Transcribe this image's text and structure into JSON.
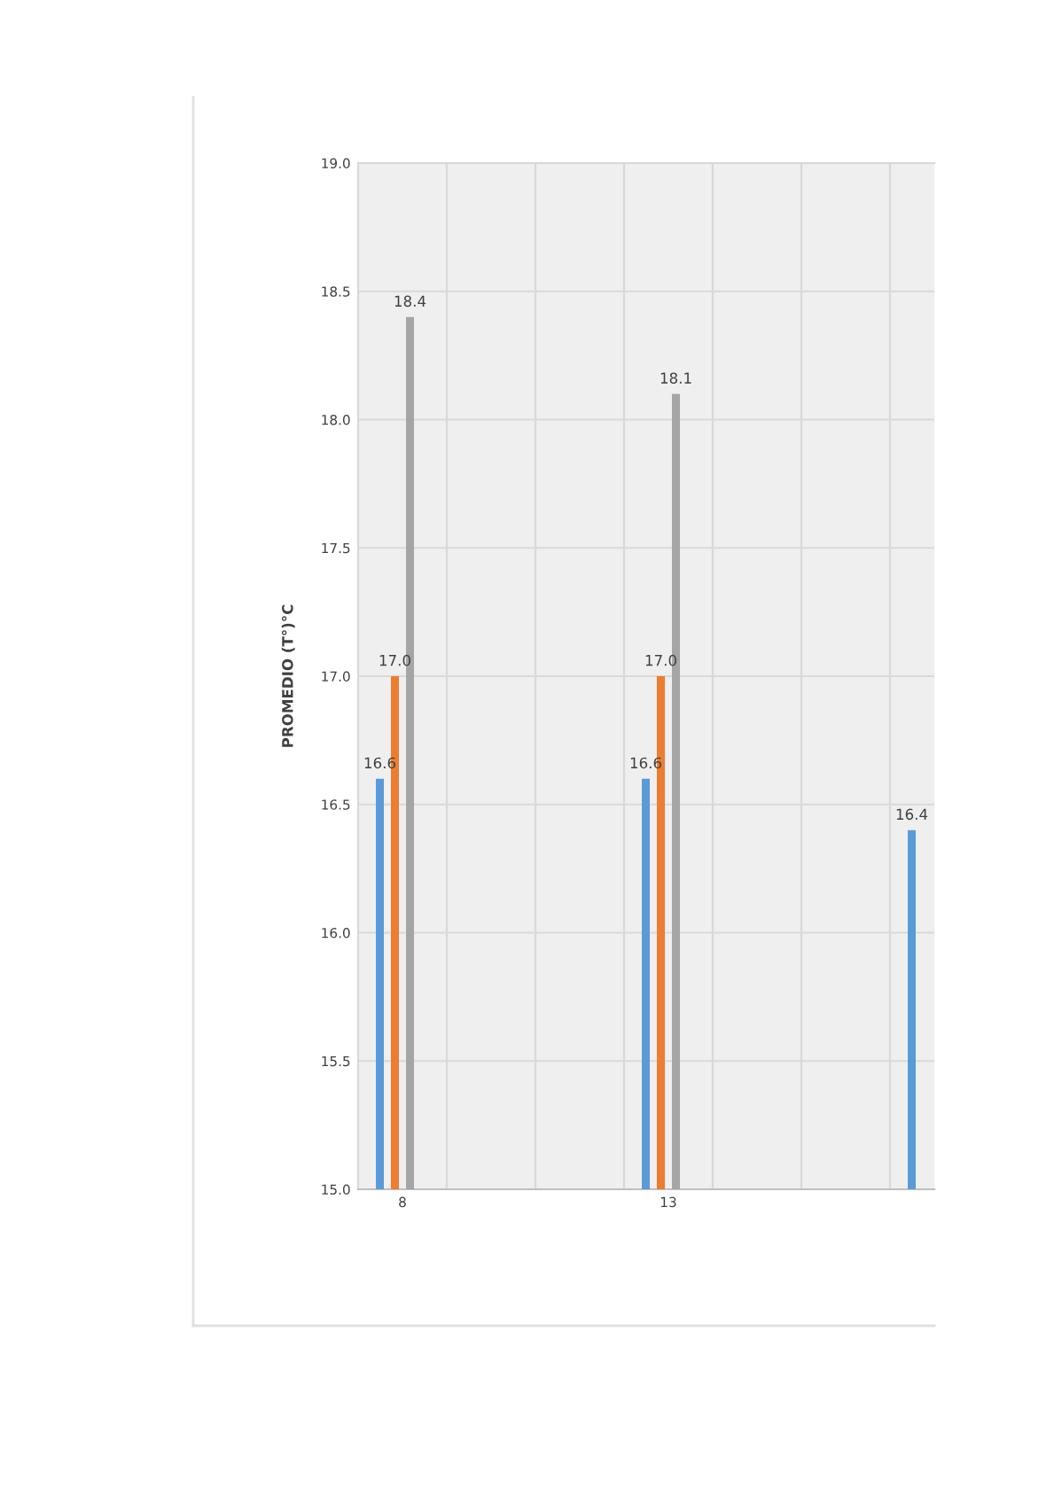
{
  "chart_data": {
    "type": "bar",
    "ylabel": "PROMEDIO (T°)°C",
    "categories": [
      "8",
      null,
      null,
      "13",
      null,
      null,
      null
    ],
    "series": [
      {
        "color": "#5b9bd5",
        "values": [
          16.6,
          null,
          null,
          16.6,
          null,
          null,
          16.4
        ],
        "value_labels": [
          "16.6",
          null,
          null,
          "16.6",
          null,
          null,
          "16.4"
        ]
      },
      {
        "color": "#ed7d31",
        "values": [
          17.0,
          null,
          null,
          17.0,
          null,
          null,
          null
        ],
        "value_labels": [
          "17.0",
          null,
          null,
          "17.0",
          null,
          null,
          null
        ]
      },
      {
        "color": "#a5a5a5",
        "values": [
          18.4,
          null,
          null,
          18.1,
          null,
          null,
          null
        ],
        "value_labels": [
          "18.4",
          null,
          null,
          "18.1",
          null,
          null,
          null
        ]
      }
    ],
    "ylim": [
      15.0,
      19.0
    ],
    "yticks": [
      {
        "value": 15,
        "label": "15.0"
      },
      15.5,
      {
        "value": 16,
        "label": "16.0"
      },
      16.5,
      {
        "value": 17,
        "label": "17.0"
      },
      17.5,
      {
        "value": 18,
        "label": "18.0"
      },
      18.5,
      {
        "value": 19,
        "label": "19.0"
      }
    ],
    "grid": true
  }
}
